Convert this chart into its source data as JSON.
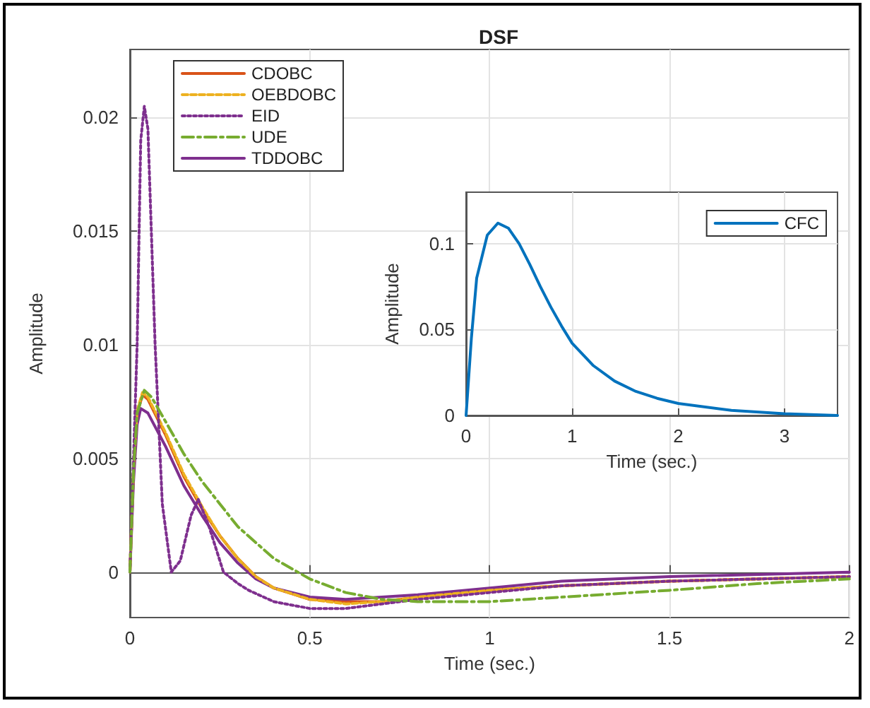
{
  "chart_data": [
    {
      "type": "line",
      "title": "DSF",
      "xlabel": "Time (sec.)",
      "ylabel": "Amplitude",
      "xlim": [
        0,
        2
      ],
      "ylim": [
        -0.002,
        0.023
      ],
      "xticks": [
        0,
        0.5,
        1,
        1.5,
        2
      ],
      "yticks": [
        0,
        0.005,
        0.01,
        0.015,
        0.02
      ],
      "grid": true,
      "legend": "top left",
      "marker": "none",
      "series": [
        {
          "name": "CDOBC",
          "color": "#d95319",
          "line_style": "solid",
          "x": [
            0,
            0.01,
            0.02,
            0.035,
            0.05,
            0.1,
            0.15,
            0.2,
            0.25,
            0.3,
            0.35,
            0.4,
            0.5,
            0.6,
            0.7,
            0.8,
            1,
            1.2,
            1.5,
            2
          ],
          "values": [
            0,
            0.0045,
            0.007,
            0.0078,
            0.0076,
            0.006,
            0.0042,
            0.0028,
            0.0016,
            0.0006,
            -0.0002,
            -0.0007,
            -0.0012,
            -0.0013,
            -0.0013,
            -0.0011,
            -0.0008,
            -0.0006,
            -0.0004,
            -0.0002
          ]
        },
        {
          "name": "OEBDOBC",
          "color": "#edb120",
          "line_style": "dashed",
          "x": [
            0,
            0.01,
            0.02,
            0.035,
            0.05,
            0.1,
            0.15,
            0.2,
            0.25,
            0.3,
            0.35,
            0.4,
            0.5,
            0.6,
            0.7,
            0.8,
            1,
            1.2,
            1.5,
            2
          ],
          "values": [
            0,
            0.0046,
            0.0071,
            0.0079,
            0.0077,
            0.0061,
            0.0043,
            0.0029,
            0.0016,
            0.0006,
            -0.0002,
            -0.0007,
            -0.0012,
            -0.0014,
            -0.0013,
            -0.0011,
            -0.0008,
            -0.0006,
            -0.0004,
            -0.0002
          ]
        },
        {
          "name": "EID",
          "color": "#7e2f8e",
          "line_style": "dotted",
          "x": [
            0,
            0.02,
            0.03,
            0.04,
            0.05,
            0.07,
            0.09,
            0.115,
            0.14,
            0.17,
            0.19,
            0.22,
            0.26,
            0.3,
            0.33,
            0.4,
            0.5,
            0.6,
            0.7,
            0.8,
            1,
            1.2,
            1.5,
            2
          ],
          "values": [
            0,
            0.01,
            0.019,
            0.0205,
            0.0195,
            0.01,
            0.003,
            0,
            0.0005,
            0.0025,
            0.0032,
            0.002,
            0,
            -0.0005,
            -0.0008,
            -0.0013,
            -0.0016,
            -0.0016,
            -0.0014,
            -0.0012,
            -0.0009,
            -0.0006,
            -0.0004,
            -0.0002
          ]
        },
        {
          "name": "UDE",
          "color": "#77ac30",
          "line_style": "dashdot",
          "x": [
            0,
            0.01,
            0.02,
            0.04,
            0.06,
            0.1,
            0.15,
            0.2,
            0.25,
            0.3,
            0.4,
            0.5,
            0.6,
            0.7,
            0.8,
            1,
            1.2,
            1.5,
            1.75,
            2
          ],
          "values": [
            0,
            0.0045,
            0.007,
            0.008,
            0.0077,
            0.0066,
            0.0052,
            0.004,
            0.003,
            0.002,
            0.0006,
            -0.0003,
            -0.0009,
            -0.0012,
            -0.0013,
            -0.0013,
            -0.0011,
            -0.0008,
            -0.0005,
            -0.0003
          ]
        },
        {
          "name": "TDDOBC",
          "color": "#7e2f8e",
          "line_style": "solid",
          "x": [
            0,
            0.01,
            0.02,
            0.03,
            0.05,
            0.1,
            0.15,
            0.2,
            0.25,
            0.3,
            0.35,
            0.4,
            0.5,
            0.6,
            0.7,
            0.8,
            1,
            1.2,
            1.5,
            2
          ],
          "values": [
            0,
            0.004,
            0.0065,
            0.0072,
            0.007,
            0.0055,
            0.0038,
            0.0025,
            0.0013,
            0.0004,
            -0.0003,
            -0.0007,
            -0.0011,
            -0.0012,
            -0.0011,
            -0.001,
            -0.0007,
            -0.0004,
            -0.0002,
            0
          ]
        }
      ]
    },
    {
      "type": "line",
      "xlabel": "Time (sec.)",
      "ylabel": "Amplitude",
      "xlim": [
        0,
        3.5
      ],
      "ylim": [
        0,
        0.13
      ],
      "xticks": [
        0,
        1,
        2,
        3
      ],
      "yticks": [
        0,
        0.05,
        0.1
      ],
      "grid": true,
      "legend": "top right",
      "marker": "none",
      "series": [
        {
          "name": "CFC",
          "color": "#0072bd",
          "line_style": "solid",
          "x": [
            0,
            0.05,
            0.1,
            0.2,
            0.3,
            0.4,
            0.5,
            0.6,
            0.7,
            0.8,
            0.9,
            1,
            1.2,
            1.4,
            1.6,
            1.8,
            2,
            2.5,
            3,
            3.5
          ],
          "values": [
            0,
            0.045,
            0.08,
            0.105,
            0.112,
            0.109,
            0.1,
            0.088,
            0.075,
            0.063,
            0.052,
            0.042,
            0.029,
            0.02,
            0.014,
            0.01,
            0.007,
            0.003,
            0.001,
            0
          ]
        }
      ]
    }
  ]
}
